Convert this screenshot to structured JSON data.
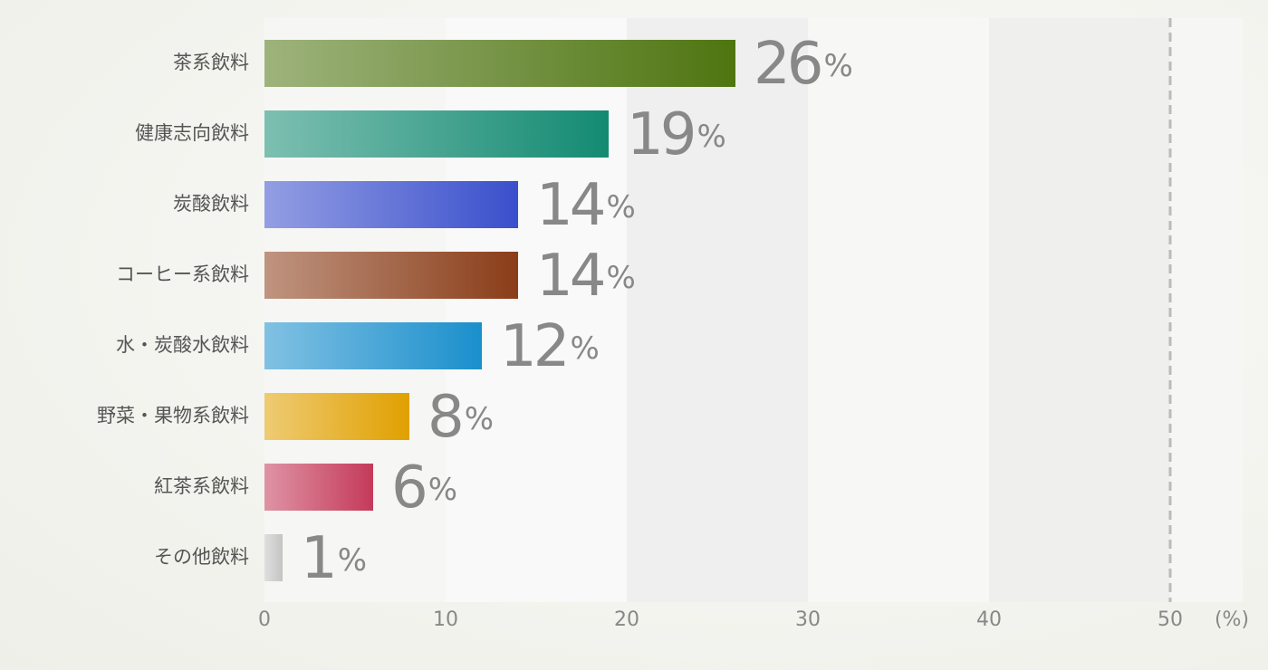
{
  "chart_data": {
    "type": "hbar",
    "categories": [
      "茶系飲料",
      "健康志向飲料",
      "炭酸飲料",
      "コーヒー系飲料",
      "水・炭酸水飲料",
      "野菜・果物系飲料",
      "紅茶系飲料",
      "その他飲料"
    ],
    "values": [
      26,
      19,
      14,
      14,
      12,
      8,
      6,
      1
    ],
    "value_labels": [
      "26%",
      "19%",
      "14%",
      "14%",
      "12%",
      "8%",
      "6%",
      "1%"
    ],
    "colors": [
      "#4e7510",
      "#138a72",
      "#3a4fcc",
      "#8a3d18",
      "#1a8fcc",
      "#e0a000",
      "#c43a5a",
      "#c4c4c4"
    ],
    "x_label": "(%)",
    "xlim": [
      0,
      54
    ],
    "xticks": [
      0,
      10,
      20,
      30,
      40,
      50
    ]
  }
}
